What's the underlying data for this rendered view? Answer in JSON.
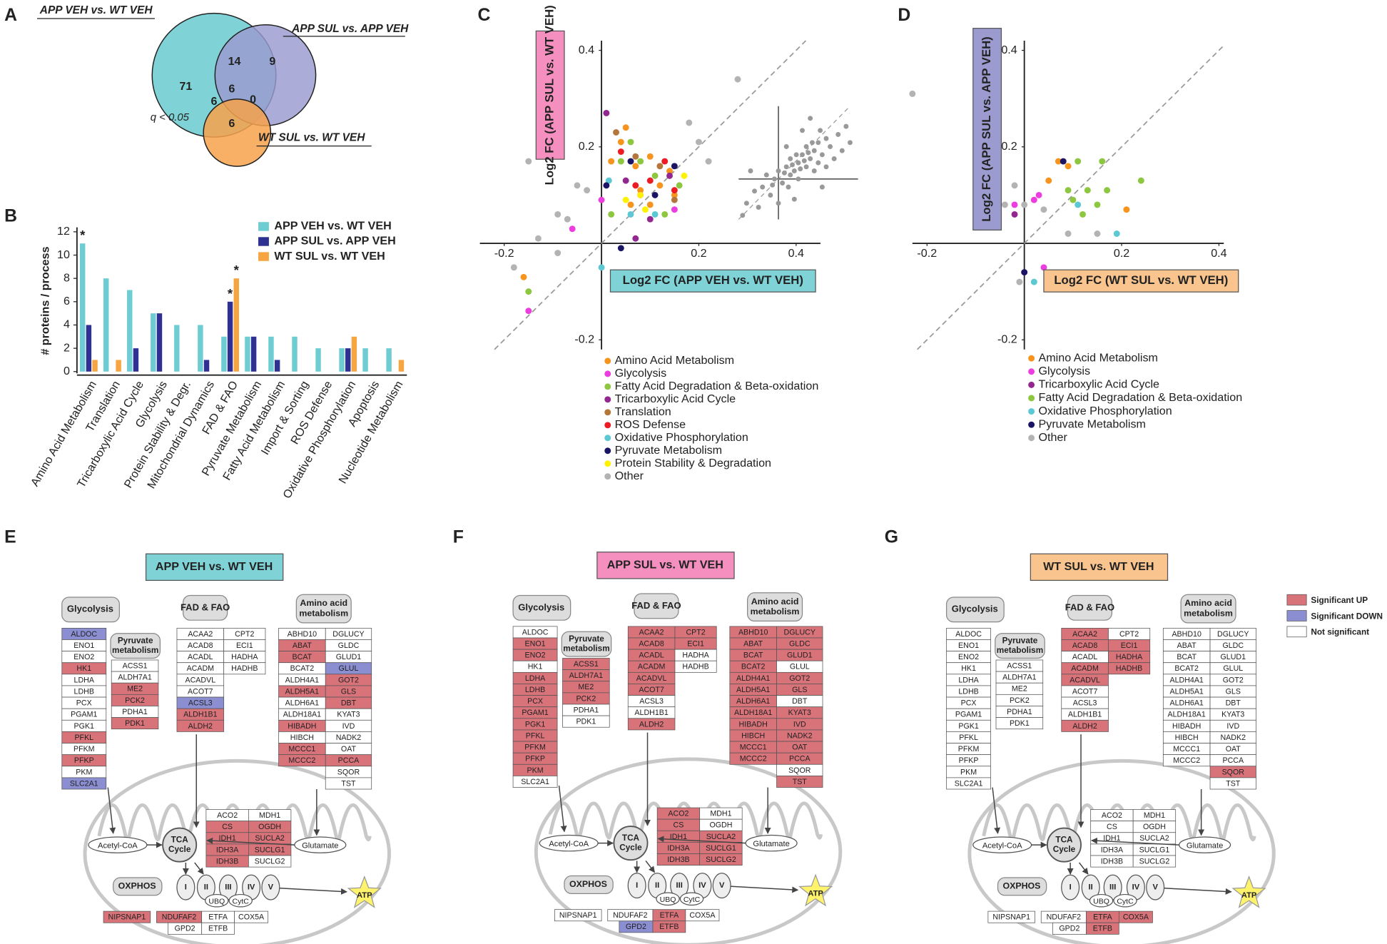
{
  "panel_labels": [
    "A",
    "B",
    "C",
    "D",
    "E",
    "F",
    "G"
  ],
  "chart_data": [
    {
      "type": "venn",
      "sets": [
        {
          "name": "APP VEH vs. WT VEH",
          "color": "#7fd3d6"
        },
        {
          "name": "APP SUL vs. APP VEH",
          "color": "#9a9acf"
        },
        {
          "name": "WT SUL vs. WT VEH",
          "color": "#f7a24b"
        }
      ],
      "regions": [
        {
          "sets": [
            0
          ],
          "value": 71
        },
        {
          "sets": [
            1
          ],
          "value": 9
        },
        {
          "sets": [
            2
          ],
          "value": 6
        },
        {
          "sets": [
            0,
            1
          ],
          "value": 14
        },
        {
          "sets": [
            0,
            2
          ],
          "value": 6
        },
        {
          "sets": [
            1,
            2
          ],
          "value": 0
        },
        {
          "sets": [
            0,
            1,
            2
          ],
          "value": 6
        }
      ],
      "annotation": "q < 0.05"
    },
    {
      "type": "bar",
      "ylabel": "# proteins / process",
      "categories": [
        "Amino Acid Metabolism",
        "Translation",
        "Tricarboxylic Acid Cycle",
        "Glycolysis",
        "Protein Stability & Degr.",
        "Mitochondrial Dynamics",
        "FAD & FAO",
        "Pyruvate Metabolism",
        "Fatty Acid Metabolism",
        "Import & Sorting",
        "ROS Defense",
        "Oxidative Phosphorylation",
        "Apoptosis",
        "Nucleotide Metabolism"
      ],
      "series": [
        {
          "name": "APP VEH vs. WT VEH",
          "color": "#6dcdd3",
          "values": [
            11,
            8,
            7,
            5,
            4,
            4,
            3,
            3,
            3,
            3,
            2,
            2,
            2,
            2
          ]
        },
        {
          "name": "APP SUL vs. APP VEH",
          "color": "#2e3192",
          "values": [
            4,
            0,
            2,
            5,
            0,
            1,
            6,
            3,
            1,
            0,
            0,
            2,
            0,
            0
          ]
        },
        {
          "name": "WT SUL vs. WT VEH",
          "color": "#f7a541",
          "values": [
            1,
            1,
            0,
            0,
            0,
            0,
            8,
            0,
            0,
            0,
            0,
            3,
            0,
            1
          ]
        }
      ],
      "ylim": [
        0,
        12
      ],
      "yticks": [
        0,
        2,
        4,
        6,
        8,
        10,
        12
      ],
      "legend": "upper right",
      "annotations": [
        {
          "text": "*",
          "category": 0,
          "series": 0
        },
        {
          "text": "*",
          "category": 6,
          "series": 1
        },
        {
          "text": "*",
          "category": 6,
          "series": 2
        }
      ]
    },
    {
      "type": "scatter",
      "xlabel": "Log2 FC (APP VEH vs. WT VEH)",
      "ylabel": "Log2 FC (APP SUL vs. WT VEH)",
      "xlabel_color": "#7fd3d6",
      "ylabel_color": "#f48fbf",
      "xlim": [
        -0.25,
        0.45
      ],
      "ylim": [
        -0.22,
        0.42
      ],
      "xticks": [
        -0.2,
        0.2,
        0.4
      ],
      "yticks": [
        -0.2,
        0.2,
        0.4
      ],
      "diagonal": true,
      "series": [
        {
          "name": "Amino Acid Metabolism",
          "color": "#f7941d",
          "x": [
            0.04,
            0.07,
            0.1,
            0.12,
            0.14,
            0.06,
            0.1,
            -0.16,
            0.15,
            0.02,
            0.05,
            0.08
          ],
          "y": [
            0.21,
            0.16,
            0.18,
            0.12,
            0.15,
            0.08,
            0.08,
            -0.07,
            0.1,
            0.17,
            0.24,
            0.11
          ]
        },
        {
          "name": "Glycolysis",
          "color": "#ec3ee0",
          "x": [
            -0.15,
            -0.06,
            0,
            0.08,
            0.15
          ],
          "y": [
            -0.14,
            0.03,
            0.09,
            0.1,
            0.07
          ]
        },
        {
          "name": "Fatty Acid Degradation & Beta-oxidation",
          "color": "#8dc63f",
          "x": [
            0.04,
            0.06,
            0.11,
            0.16,
            0.02,
            -0.15,
            0.13,
            0.08
          ],
          "y": [
            0.17,
            0.21,
            0.14,
            0.12,
            0.06,
            -0.1,
            0.06,
            0.17
          ]
        },
        {
          "name": "Tricarboxylic Acid Cycle",
          "color": "#92278f",
          "x": [
            0.01,
            0.05,
            0.1,
            0.14,
            0.07
          ],
          "y": [
            0.27,
            0.13,
            0.05,
            0.14,
            0.01
          ]
        },
        {
          "name": "Translation",
          "color": "#b5763c",
          "x": [
            0.03,
            0.07,
            0.12,
            0.15
          ],
          "y": [
            0.23,
            0.18,
            0.16,
            0.09
          ]
        },
        {
          "name": "ROS Defense",
          "color": "#ed1c24",
          "x": [
            0.04,
            0.07,
            0.1,
            0.13,
            0.15
          ],
          "y": [
            0.19,
            0.12,
            0.13,
            0.17,
            0.11
          ]
        },
        {
          "name": "Oxidative Phosphorylation",
          "color": "#5bc8d4",
          "x": [
            0,
            0.06,
            0.11,
            0.015
          ],
          "y": [
            -0.05,
            0.06,
            0.06,
            0.13
          ]
        },
        {
          "name": "Pyruvate Metabolism",
          "color": "#1b1464",
          "x": [
            0.01,
            0.04,
            0.06,
            0.11,
            0.15
          ],
          "y": [
            0.12,
            -0.01,
            0.17,
            0.1,
            0.16
          ]
        },
        {
          "name": "Protein Stability & Degradation",
          "color": "#fff200",
          "x": [
            0.05,
            0.09,
            0.17,
            0.08
          ],
          "y": [
            0.09,
            0.07,
            0.14,
            0.1
          ]
        },
        {
          "name": "Other",
          "color": "#b3b3b3",
          "x": [
            -0.15,
            -0.09,
            -0.09,
            -0.07,
            0.28,
            0.2,
            0.22,
            -0.03,
            -0.18,
            -0.05,
            0.18,
            -0.13
          ],
          "y": [
            0.17,
            0.06,
            -0.02,
            0.05,
            0.34,
            0.21,
            0.17,
            0.11,
            -0.05,
            0.12,
            0.25,
            0.01
          ]
        }
      ],
      "inset": {
        "color": "#999999",
        "xlim": [
          -1,
          2
        ],
        "ylim": [
          -1,
          1.8
        ],
        "x": [
          -0.8,
          -0.6,
          -0.5,
          -0.4,
          -0.3,
          -0.2,
          -0.1,
          0,
          0.1,
          0.2,
          0.3,
          0.3,
          0.4,
          0.5,
          0.5,
          0.6,
          0.7,
          0.7,
          0.8,
          0.9,
          0.9,
          1.0,
          1.0,
          1.1,
          1.2,
          1.2,
          1.3,
          1.4,
          1.5,
          1.6,
          1.7,
          1.8,
          -0.7,
          0.2,
          0.4,
          0.6,
          1.1,
          0,
          -0.9,
          0.8,
          0.35,
          0.55,
          0.65,
          0.45,
          0.75,
          0.15,
          -0.15,
          0.85,
          0.25,
          1.05
        ],
        "y": [
          -0.6,
          -0.3,
          -0.7,
          -0.2,
          0.1,
          -0.4,
          0,
          0.2,
          -0.1,
          0.3,
          0.1,
          0.5,
          0.2,
          0.4,
          0,
          0.6,
          0.3,
          0.8,
          0.5,
          0.2,
          0.7,
          0.9,
          0.4,
          0.6,
          1.0,
          0.3,
          0.8,
          0.5,
          1.1,
          0.7,
          1.3,
          0.9,
          0.2,
          0.8,
          -0.5,
          1.2,
          -0.2,
          -0.6,
          -0.9,
          1.5,
          0.35,
          0.25,
          0.45,
          0.6,
          0.65,
          0.15,
          -0.15,
          0.9,
          -0.2,
          1.2
        ]
      }
    },
    {
      "type": "scatter",
      "xlabel": "Log2 FC (WT SUL vs. WT VEH)",
      "ylabel": "Log2 FC (APP SUL vs. APP VEH)",
      "xlabel_color": "#f9c48e",
      "ylabel_color": "#9c9bd0",
      "xlim": [
        -0.23,
        0.41
      ],
      "ylim": [
        -0.22,
        0.42
      ],
      "xticks": [
        -0.2,
        0.2,
        0.4
      ],
      "yticks": [
        -0.2,
        0.2,
        0.4
      ],
      "diagonal": true,
      "series": [
        {
          "name": "Amino Acid Metabolism",
          "color": "#f7941d",
          "x": [
            0.05,
            0.07,
            0.21,
            0.09
          ],
          "y": [
            0.13,
            0.17,
            0.07,
            0.16
          ]
        },
        {
          "name": "Glycolysis",
          "color": "#ec3ee0",
          "x": [
            -0.02,
            0.03,
            0.04,
            0.02
          ],
          "y": [
            0.08,
            0.1,
            -0.05,
            0.09
          ]
        },
        {
          "name": "Tricarboxylic Acid Cycle",
          "color": "#92278f",
          "x": [
            -0.02
          ],
          "y": [
            0.06
          ]
        },
        {
          "name": "Fatty Acid Degradation & Beta-oxidation",
          "color": "#8dc63f",
          "x": [
            0.11,
            0.16,
            0.1,
            0.13,
            0.17,
            0.24,
            0.12,
            0.15,
            0.09
          ],
          "y": [
            0.17,
            0.17,
            0.09,
            0.11,
            0.11,
            0.13,
            0.06,
            0.08,
            0.11
          ]
        },
        {
          "name": "Oxidative Phosphorylation",
          "color": "#5bc8d4",
          "x": [
            0.11,
            0.19,
            0.02
          ],
          "y": [
            0.08,
            0.02,
            -0.08
          ]
        },
        {
          "name": "Pyruvate Metabolism",
          "color": "#1b1464",
          "x": [
            0.08,
            0
          ],
          "y": [
            0.17,
            -0.06
          ]
        },
        {
          "name": "Other",
          "color": "#b3b3b3",
          "x": [
            -0.23,
            -0.02,
            0,
            0.04,
            0.09,
            0.15,
            -0.01,
            -0.04
          ],
          "y": [
            0.31,
            0.12,
            0.08,
            0.07,
            0.02,
            0.02,
            -0.08,
            0.08
          ]
        }
      ]
    }
  ],
  "pathway": {
    "glycolysis": {
      "title": "Glycolysis",
      "genes": [
        "ALDOC",
        "ENO1",
        "ENO2",
        "HK1",
        "LDHA",
        "LDHB",
        "PCX",
        "PGAM1",
        "PGK1",
        "PFKL",
        "PFKM",
        "PFKP",
        "PKM",
        "SLC2A1"
      ]
    },
    "pyruvate": {
      "title": "Pyruvate metabolism",
      "genes": [
        "ACSS1",
        "ALDH7A1",
        "ME2",
        "PCK2",
        "PDHA1",
        "PDK1"
      ]
    },
    "fad": {
      "title": "FAD & FAO",
      "columns": [
        [
          "ACAA2",
          "ACAD8",
          "ACADL",
          "ACADM",
          "ACADVL",
          "ACOT7",
          "ACSL3",
          "ALDH1B1",
          "ALDH2"
        ],
        [
          "CPT2",
          "ECI1",
          "HADHA",
          "HADHB"
        ]
      ]
    },
    "amino": {
      "title": "Amino acid metabolism",
      "columns": [
        [
          "ABHD10",
          "ABAT",
          "BCAT",
          "BCAT2",
          "ALDH4A1",
          "ALDH5A1",
          "ALDH6A1",
          "ALDH18A1",
          "HIBADH",
          "HIBCH",
          "MCCC1",
          "MCCC2"
        ],
        [
          "DGLUCY",
          "GLDC",
          "GLUD1",
          "GLUL",
          "GOT2",
          "GLS",
          "DBT",
          "KYAT3",
          "IVD",
          "NADK2",
          "OAT",
          "PCCA",
          "SQOR",
          "TST"
        ]
      ]
    },
    "tca": {
      "title": "TCA Cycle",
      "rows": [
        [
          "ACO2",
          "MDH1"
        ],
        [
          "CS",
          "OGDH"
        ],
        [
          "IDH1",
          "SUCLA2"
        ],
        [
          "IDH3A",
          "SUCLG1"
        ],
        [
          "IDH3B",
          "SUCLG2"
        ]
      ]
    },
    "acetyl": "Acetyl-CoA",
    "glutamate": "Glutamate",
    "oxphos": "OXPHOS",
    "complexes": [
      "I",
      "II",
      "III",
      "IV",
      "V"
    ],
    "carriers": [
      "UBQ",
      "CytC"
    ],
    "atp": "ATP",
    "oxphos_genes": [
      "NIPSNAP1",
      "NDUFAF2",
      "ETFA",
      "COX5A",
      "GPD2",
      "ETFB"
    ]
  },
  "pathway_panels": [
    {
      "title": "APP VEH vs. WT VEH",
      "color": "#7fd3d6",
      "up": [
        "HK1",
        "PFKL",
        "PFKP",
        "ME2",
        "PCK2",
        "PDK1",
        "ALDH1B1",
        "ALDH2",
        "ABAT",
        "BCAT",
        "ALDH5A1",
        "HIBADH",
        "MCCC1",
        "MCCC2",
        "GOT2",
        "GLS",
        "DBT",
        "PCCA",
        "CS",
        "OGDH",
        "IDH1",
        "SUCLA2",
        "IDH3A",
        "SUCLG1",
        "IDH3B",
        "NIPSNAP1",
        "NDUFAF2"
      ],
      "down": [
        "ALDOC",
        "SLC2A1",
        "ACSL3",
        "GLUL"
      ]
    },
    {
      "title": "APP SUL vs. WT VEH",
      "color": "#f48fbf",
      "up": [
        "ENO1",
        "ENO2",
        "LDHA",
        "LDHB",
        "PCX",
        "PGAM1",
        "PGK1",
        "PFKL",
        "PFKM",
        "PFKP",
        "PKM",
        "ACSS1",
        "ALDH7A1",
        "ME2",
        "PCK2",
        "ACAA2",
        "ACAD8",
        "ACADL",
        "ACADM",
        "ACADVL",
        "ACOT7",
        "ALDH2",
        "CPT2",
        "ECI1",
        "ABHD10",
        "ABAT",
        "BCAT",
        "BCAT2",
        "ALDH4A1",
        "ALDH5A1",
        "ALDH6A1",
        "ALDH18A1",
        "HIBADH",
        "HIBCH",
        "MCCC1",
        "MCCC2",
        "DGLUCY",
        "GLDC",
        "GLUD1",
        "GOT2",
        "GLS",
        "KYAT3",
        "IVD",
        "NADK2",
        "OAT",
        "PCCA",
        "TST",
        "ACO2",
        "CS",
        "IDH1",
        "SUCLA2",
        "IDH3A",
        "SUCLG1",
        "IDH3B",
        "SUCLG2",
        "ETFA",
        "ETFB"
      ],
      "down": [
        "GPD2"
      ]
    },
    {
      "title": "WT SUL vs. WT VEH",
      "color": "#f9c48e",
      "up": [
        "ACAA2",
        "ACAD8",
        "ACADM",
        "ACADVL",
        "ALDH2",
        "ECI1",
        "HADHA",
        "HADHB",
        "SQOR",
        "ETFA",
        "COX5A",
        "ETFB"
      ],
      "down": []
    }
  ],
  "significance_legend": [
    {
      "name": "Significant UP",
      "color": "#d8737a"
    },
    {
      "name": "Significant DOWN",
      "color": "#8b8fd2"
    },
    {
      "name": "Not significant",
      "color": "#ffffff"
    }
  ]
}
